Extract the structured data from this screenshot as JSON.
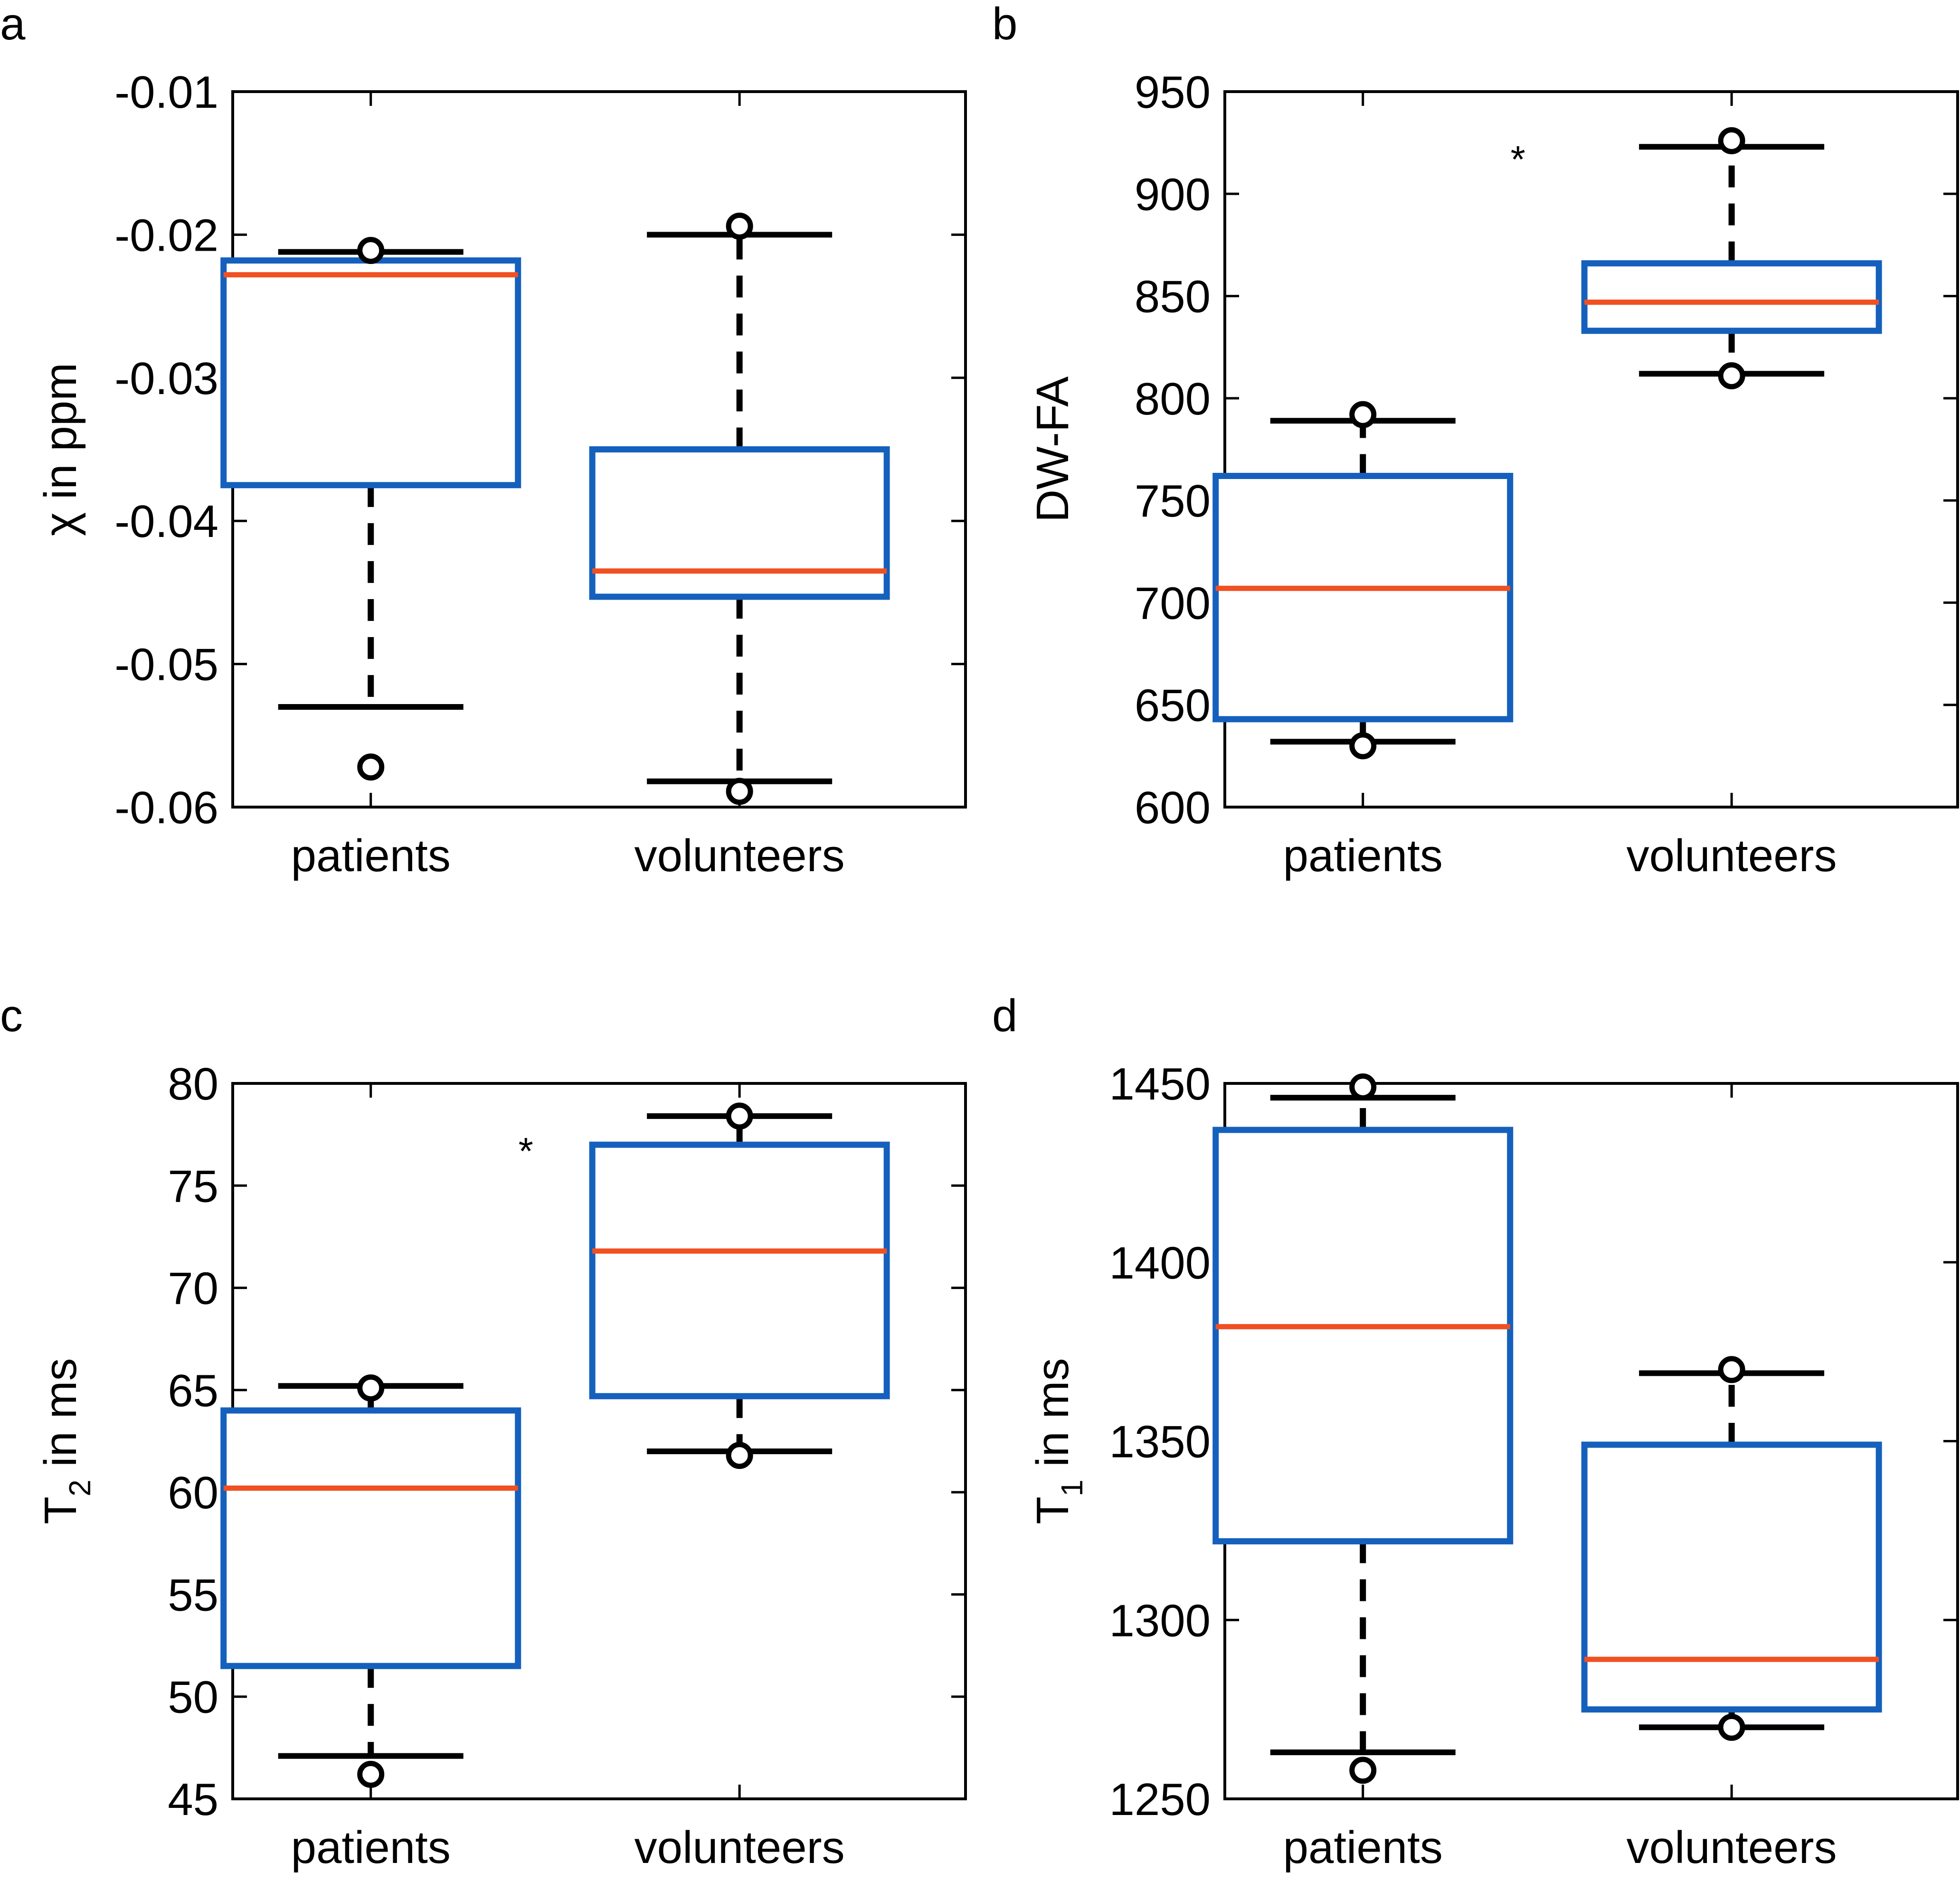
{
  "colors": {
    "box": "#1560bd",
    "median": "#f05022",
    "whisker": "#000000",
    "axis": "#000000"
  },
  "chart_data": [
    {
      "type": "box",
      "panel_label": "a",
      "ylabel_symbol": "χ",
      "ylabel_sub": "",
      "ylabel_rest": " in ppm",
      "categories": [
        "patients",
        "volunteers"
      ],
      "ylim": [
        -0.06,
        -0.01
      ],
      "yticks": [
        -0.06,
        -0.05,
        -0.04,
        -0.03,
        -0.02,
        -0.01
      ],
      "ytick_labels": [
        "-0.06",
        "-0.05",
        "-0.04",
        "-0.03",
        "-0.02",
        "-0.01"
      ],
      "boxes": [
        {
          "q1": -0.0375,
          "median": -0.0228,
          "q3": -0.0218,
          "whisker_low": -0.053,
          "whisker_high": -0.0212,
          "outliers": [
            -0.0572,
            -0.0211
          ]
        },
        {
          "q1": -0.0453,
          "median": -0.0435,
          "q3": -0.035,
          "whisker_low": -0.0582,
          "whisker_high": -0.02,
          "outliers": [
            -0.0589,
            -0.0194
          ]
        }
      ],
      "annotation": ""
    },
    {
      "type": "box",
      "panel_label": "b",
      "ylabel_symbol": "DW-FA",
      "ylabel_sub": "",
      "ylabel_rest": "",
      "categories": [
        "patients",
        "volunteers"
      ],
      "ylim": [
        600,
        950
      ],
      "yticks": [
        600,
        650,
        700,
        750,
        800,
        850,
        900,
        950
      ],
      "ytick_labels": [
        "600",
        "650",
        "700",
        "750",
        "800",
        "850",
        "900",
        "950"
      ],
      "boxes": [
        {
          "q1": 643,
          "median": 707,
          "q3": 762,
          "whisker_low": 632,
          "whisker_high": 789,
          "outliers": [
            630,
            792
          ]
        },
        {
          "q1": 833,
          "median": 847,
          "q3": 866,
          "whisker_low": 812,
          "whisker_high": 923,
          "outliers": [
            811,
            926
          ]
        }
      ],
      "annotation": "*"
    },
    {
      "type": "box",
      "panel_label": "c",
      "ylabel_symbol": "T",
      "ylabel_sub": "2",
      "ylabel_rest": " in ms",
      "categories": [
        "patients",
        "volunteers"
      ],
      "ylim": [
        45,
        80
      ],
      "yticks": [
        45,
        50,
        55,
        60,
        65,
        70,
        75,
        80
      ],
      "ytick_labels": [
        "45",
        "50",
        "55",
        "60",
        "65",
        "70",
        "75",
        "80"
      ],
      "boxes": [
        {
          "q1": 51.5,
          "median": 60.2,
          "q3": 64,
          "whisker_low": 47.1,
          "whisker_high": 65.2,
          "outliers": [
            46.2,
            65.1
          ]
        },
        {
          "q1": 64.7,
          "median": 71.8,
          "q3": 77,
          "whisker_low": 62,
          "whisker_high": 78.4,
          "outliers": [
            61.8,
            78.4
          ]
        }
      ],
      "annotation": "*"
    },
    {
      "type": "box",
      "panel_label": "d",
      "ylabel_symbol": "T",
      "ylabel_sub": "1",
      "ylabel_rest": " in ms",
      "categories": [
        "patients",
        "volunteers"
      ],
      "ylim": [
        1250,
        1450
      ],
      "yticks": [
        1250,
        1300,
        1350,
        1400,
        1450
      ],
      "ytick_labels": [
        "1250",
        "1300",
        "1350",
        "1400",
        "1450"
      ],
      "boxes": [
        {
          "q1": 1322,
          "median": 1382,
          "q3": 1437,
          "whisker_low": 1263,
          "whisker_high": 1446,
          "outliers": [
            1258,
            1449
          ]
        },
        {
          "q1": 1275,
          "median": 1289,
          "q3": 1349,
          "whisker_low": 1270,
          "whisker_high": 1369,
          "outliers": [
            1270,
            1370
          ]
        }
      ],
      "annotation": ""
    }
  ]
}
